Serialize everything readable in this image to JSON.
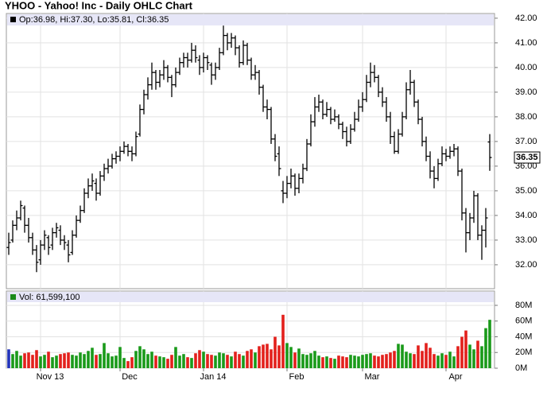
{
  "chart_data": [
    {
      "type": "ohlc",
      "title": "YHOO - Yahoo! Inc - Daily OHLC Chart",
      "legend": "Op:36.98, Hi:37.30, Lo:35.81, Cl:36.35",
      "color": "#000000",
      "legend_color": "#000000",
      "ylim": [
        31.03,
        42.19
      ],
      "yticks": [
        {
          "value": 32,
          "label": "32.00"
        },
        {
          "value": 33,
          "label": "33.00"
        },
        {
          "value": 34,
          "label": "34.00"
        },
        {
          "value": 35,
          "label": "35.00"
        },
        {
          "value": 36,
          "label": "36.00"
        },
        {
          "value": 37,
          "label": "37.00"
        },
        {
          "value": 38,
          "label": "38.00"
        },
        {
          "value": 39,
          "label": "39.00"
        },
        {
          "value": 40,
          "label": "40.00"
        },
        {
          "value": 41,
          "label": "41.00"
        },
        {
          "value": 42,
          "label": "42.00"
        }
      ],
      "grid": true,
      "open": [
        32.7,
        33.0,
        33.6,
        33.9,
        34.3,
        33.6,
        33.1,
        32.6,
        32.2,
        32.8,
        33.1,
        32.8,
        33.3,
        33.4,
        33.0,
        32.8,
        32.5,
        33.2,
        33.8,
        34.2,
        34.9,
        35.2,
        35.3,
        34.9,
        35.6,
        35.9,
        36.0,
        36.3,
        36.4,
        36.6,
        36.8,
        36.6,
        36.5,
        37.3,
        38.3,
        38.9,
        39.3,
        39.8,
        39.4,
        39.7,
        40.0,
        39.6,
        39.3,
        39.8,
        40.2,
        40.4,
        40.3,
        40.7,
        40.3,
        40.0,
        40.4,
        40.1,
        39.7,
        40.0,
        40.6,
        41.3,
        41.0,
        41.2,
        40.8,
        40.2,
        40.9,
        40.3,
        39.7,
        39.8,
        39.2,
        38.4,
        38.3,
        37.1,
        36.5,
        35.0,
        34.9,
        35.3,
        35.6,
        35.1,
        35.5,
        35.9,
        36.9,
        37.8,
        38.4,
        38.6,
        38.1,
        38.3,
        37.9,
        38.0,
        37.7,
        37.4,
        37.0,
        37.5,
        37.9,
        38.4,
        38.7,
        39.4,
        39.8,
        39.6,
        39.0,
        38.6,
        38.0,
        37.2,
        36.6,
        37.3,
        38.0,
        39.1,
        39.4,
        38.6,
        37.9,
        37.0,
        36.4,
        35.8,
        35.5,
        36.1,
        36.5,
        36.4,
        36.6,
        36.7,
        35.8,
        34.1,
        33.3,
        33.9,
        34.8,
        33.2,
        33.4,
        36.98
      ],
      "high": [
        33.3,
        33.8,
        34.2,
        34.6,
        34.4,
        33.9,
        33.3,
        32.8,
        33.0,
        33.4,
        33.2,
        33.5,
        33.7,
        33.6,
        33.2,
        33.0,
        33.4,
        34.0,
        34.4,
        35.1,
        35.5,
        35.7,
        35.5,
        35.8,
        36.1,
        36.3,
        36.5,
        36.6,
        36.8,
        37.0,
        36.9,
        36.8,
        37.4,
        38.5,
        39.1,
        39.6,
        40.2,
        39.9,
        39.9,
        40.3,
        40.1,
        39.7,
        40.0,
        40.4,
        40.6,
        40.6,
        41.0,
        40.9,
        40.5,
        40.6,
        40.5,
        40.2,
        40.2,
        40.8,
        41.7,
        41.4,
        41.4,
        41.3,
        40.9,
        41.1,
        41.0,
        40.4,
        40.1,
        39.9,
        39.3,
        38.7,
        38.4,
        37.3,
        36.8,
        35.4,
        35.6,
        35.9,
        35.7,
        35.7,
        36.1,
        37.1,
        38.1,
        38.8,
        38.9,
        38.7,
        38.6,
        38.4,
        38.3,
        38.1,
        37.8,
        37.6,
        37.7,
        38.2,
        38.7,
        39.0,
        39.7,
        40.2,
        40.1,
        39.7,
        39.2,
        38.8,
        38.2,
        37.4,
        37.5,
        38.2,
        39.4,
        39.9,
        39.5,
        38.7,
        38.0,
        37.2,
        36.6,
        36.0,
        36.3,
        36.8,
        36.7,
        36.8,
        36.9,
        36.8,
        35.9,
        34.3,
        34.1,
        35.0,
        34.9,
        33.6,
        34.3,
        37.3
      ],
      "low": [
        32.4,
        32.9,
        33.4,
        33.8,
        33.3,
        32.9,
        32.4,
        31.7,
        32.0,
        32.6,
        32.4,
        32.6,
        33.1,
        32.8,
        32.6,
        32.1,
        32.4,
        33.1,
        33.7,
        34.1,
        34.7,
        35.0,
        34.6,
        34.8,
        35.4,
        35.7,
        35.9,
        36.1,
        36.2,
        36.5,
        36.4,
        36.2,
        36.4,
        37.2,
        38.1,
        38.7,
        39.1,
        39.1,
        39.2,
        39.5,
        39.4,
        38.8,
        39.2,
        39.7,
        40.0,
        40.0,
        40.2,
        40.2,
        39.7,
        39.8,
        39.9,
        39.3,
        39.5,
        39.9,
        40.5,
        40.7,
        40.8,
        40.5,
        40.0,
        40.1,
        40.1,
        39.5,
        39.5,
        38.9,
        38.2,
        37.9,
        36.9,
        36.2,
        35.6,
        34.5,
        34.7,
        35.1,
        34.8,
        34.9,
        35.3,
        35.8,
        36.8,
        37.6,
        38.2,
        37.9,
        38.0,
        37.7,
        37.8,
        37.5,
        37.1,
        36.8,
        36.9,
        37.4,
        37.8,
        38.2,
        38.6,
        39.2,
        39.4,
        38.8,
        38.4,
        37.8,
        36.9,
        36.5,
        36.5,
        37.2,
        37.9,
        38.9,
        38.4,
        37.7,
        36.8,
        36.2,
        35.5,
        35.1,
        35.4,
        36.0,
        36.2,
        36.3,
        36.4,
        35.6,
        33.8,
        32.5,
        33.0,
        33.7,
        33.0,
        32.2,
        32.7,
        35.81
      ],
      "close": [
        32.9,
        33.6,
        33.9,
        34.4,
        33.6,
        33.1,
        32.6,
        32.1,
        32.8,
        33.2,
        32.7,
        33.3,
        33.5,
        33.0,
        32.9,
        32.4,
        33.2,
        33.8,
        34.2,
        34.9,
        35.2,
        35.4,
        34.9,
        35.6,
        35.9,
        36.0,
        36.3,
        36.4,
        36.6,
        36.8,
        36.6,
        36.5,
        37.2,
        38.3,
        38.9,
        39.3,
        39.8,
        39.4,
        39.7,
        40.0,
        39.6,
        39.3,
        39.8,
        40.2,
        40.4,
        40.3,
        40.7,
        40.4,
        40.0,
        40.4,
        40.2,
        39.7,
        40.0,
        40.6,
        41.3,
        41.0,
        41.2,
        40.8,
        40.2,
        40.9,
        40.3,
        39.7,
        39.8,
        39.2,
        38.4,
        38.3,
        37.1,
        36.4,
        35.9,
        34.9,
        35.3,
        35.6,
        35.1,
        35.5,
        35.9,
        36.9,
        37.8,
        38.4,
        38.6,
        38.1,
        38.3,
        37.9,
        38.0,
        37.7,
        37.4,
        37.0,
        37.5,
        37.9,
        38.4,
        38.7,
        39.4,
        39.8,
        39.6,
        39.0,
        38.6,
        38.0,
        37.2,
        36.6,
        37.3,
        38.0,
        39.1,
        39.4,
        38.6,
        37.9,
        37.0,
        36.4,
        35.8,
        35.5,
        36.1,
        36.5,
        36.4,
        36.6,
        36.7,
        35.8,
        34.1,
        33.3,
        33.9,
        34.8,
        33.2,
        33.4,
        33.9,
        36.35
      ]
    },
    {
      "type": "bar",
      "legend": "Vol: 61,599,100",
      "legend_color": "#1a8a1a",
      "up_color": "#1a9a1a",
      "down_color": "#e3201c",
      "flat_color": "#2233bb",
      "ylim": [
        0,
        98.2
      ],
      "yticks": [
        {
          "value": 0,
          "label": "0M"
        },
        {
          "value": 20,
          "label": "20M"
        },
        {
          "value": 40,
          "label": "40M"
        },
        {
          "value": 60,
          "label": "60M"
        },
        {
          "value": 80,
          "label": "80M"
        }
      ],
      "grid": true,
      "categories": [
        null,
        null,
        null,
        null,
        null,
        null,
        null,
        null,
        "Nov 13",
        null,
        null,
        null,
        null,
        null,
        null,
        null,
        null,
        null,
        null,
        null,
        null,
        null,
        null,
        null,
        null,
        null,
        null,
        null,
        "Dec",
        null,
        null,
        null,
        null,
        null,
        null,
        null,
        null,
        null,
        null,
        null,
        null,
        null,
        null,
        null,
        null,
        null,
        null,
        null,
        null,
        "Jan 14",
        null,
        null,
        null,
        null,
        null,
        null,
        null,
        null,
        null,
        null,
        null,
        null,
        null,
        null,
        null,
        null,
        null,
        null,
        null,
        null,
        "Feb",
        null,
        null,
        null,
        null,
        null,
        null,
        null,
        null,
        null,
        null,
        null,
        null,
        null,
        null,
        null,
        null,
        null,
        null,
        "Mar",
        null,
        null,
        null,
        null,
        null,
        null,
        null,
        null,
        null,
        null,
        null,
        null,
        null,
        null,
        null,
        null,
        null,
        null,
        null,
        null,
        "Apr",
        null,
        null,
        null,
        null,
        null,
        null,
        null,
        null,
        null,
        null,
        null
      ],
      "values": [
        24,
        18,
        22,
        16,
        19,
        20,
        17,
        23,
        15,
        17,
        21,
        14,
        16,
        18,
        19,
        20,
        17,
        16,
        20,
        18,
        22,
        26,
        17,
        18,
        32,
        19,
        15,
        16,
        27,
        13,
        9,
        14,
        22,
        28,
        24,
        18,
        21,
        16,
        15,
        14,
        12,
        17,
        27,
        16,
        18,
        14,
        13,
        19,
        23,
        21,
        18,
        17,
        16,
        20,
        19,
        17,
        15,
        21,
        18,
        16,
        22,
        24,
        20,
        28,
        30,
        31,
        24,
        40,
        29,
        68,
        32,
        27,
        20,
        25,
        18,
        17,
        19,
        22,
        16,
        14,
        15,
        13,
        12,
        16,
        15,
        14,
        17,
        16,
        15,
        17,
        18,
        19,
        16,
        15,
        17,
        18,
        20,
        22,
        31,
        30,
        21,
        19,
        18,
        29,
        22,
        32,
        26,
        18,
        16,
        19,
        17,
        21,
        15,
        28,
        40,
        48,
        30,
        24,
        35,
        28,
        51,
        61.5991
      ]
    }
  ]
}
